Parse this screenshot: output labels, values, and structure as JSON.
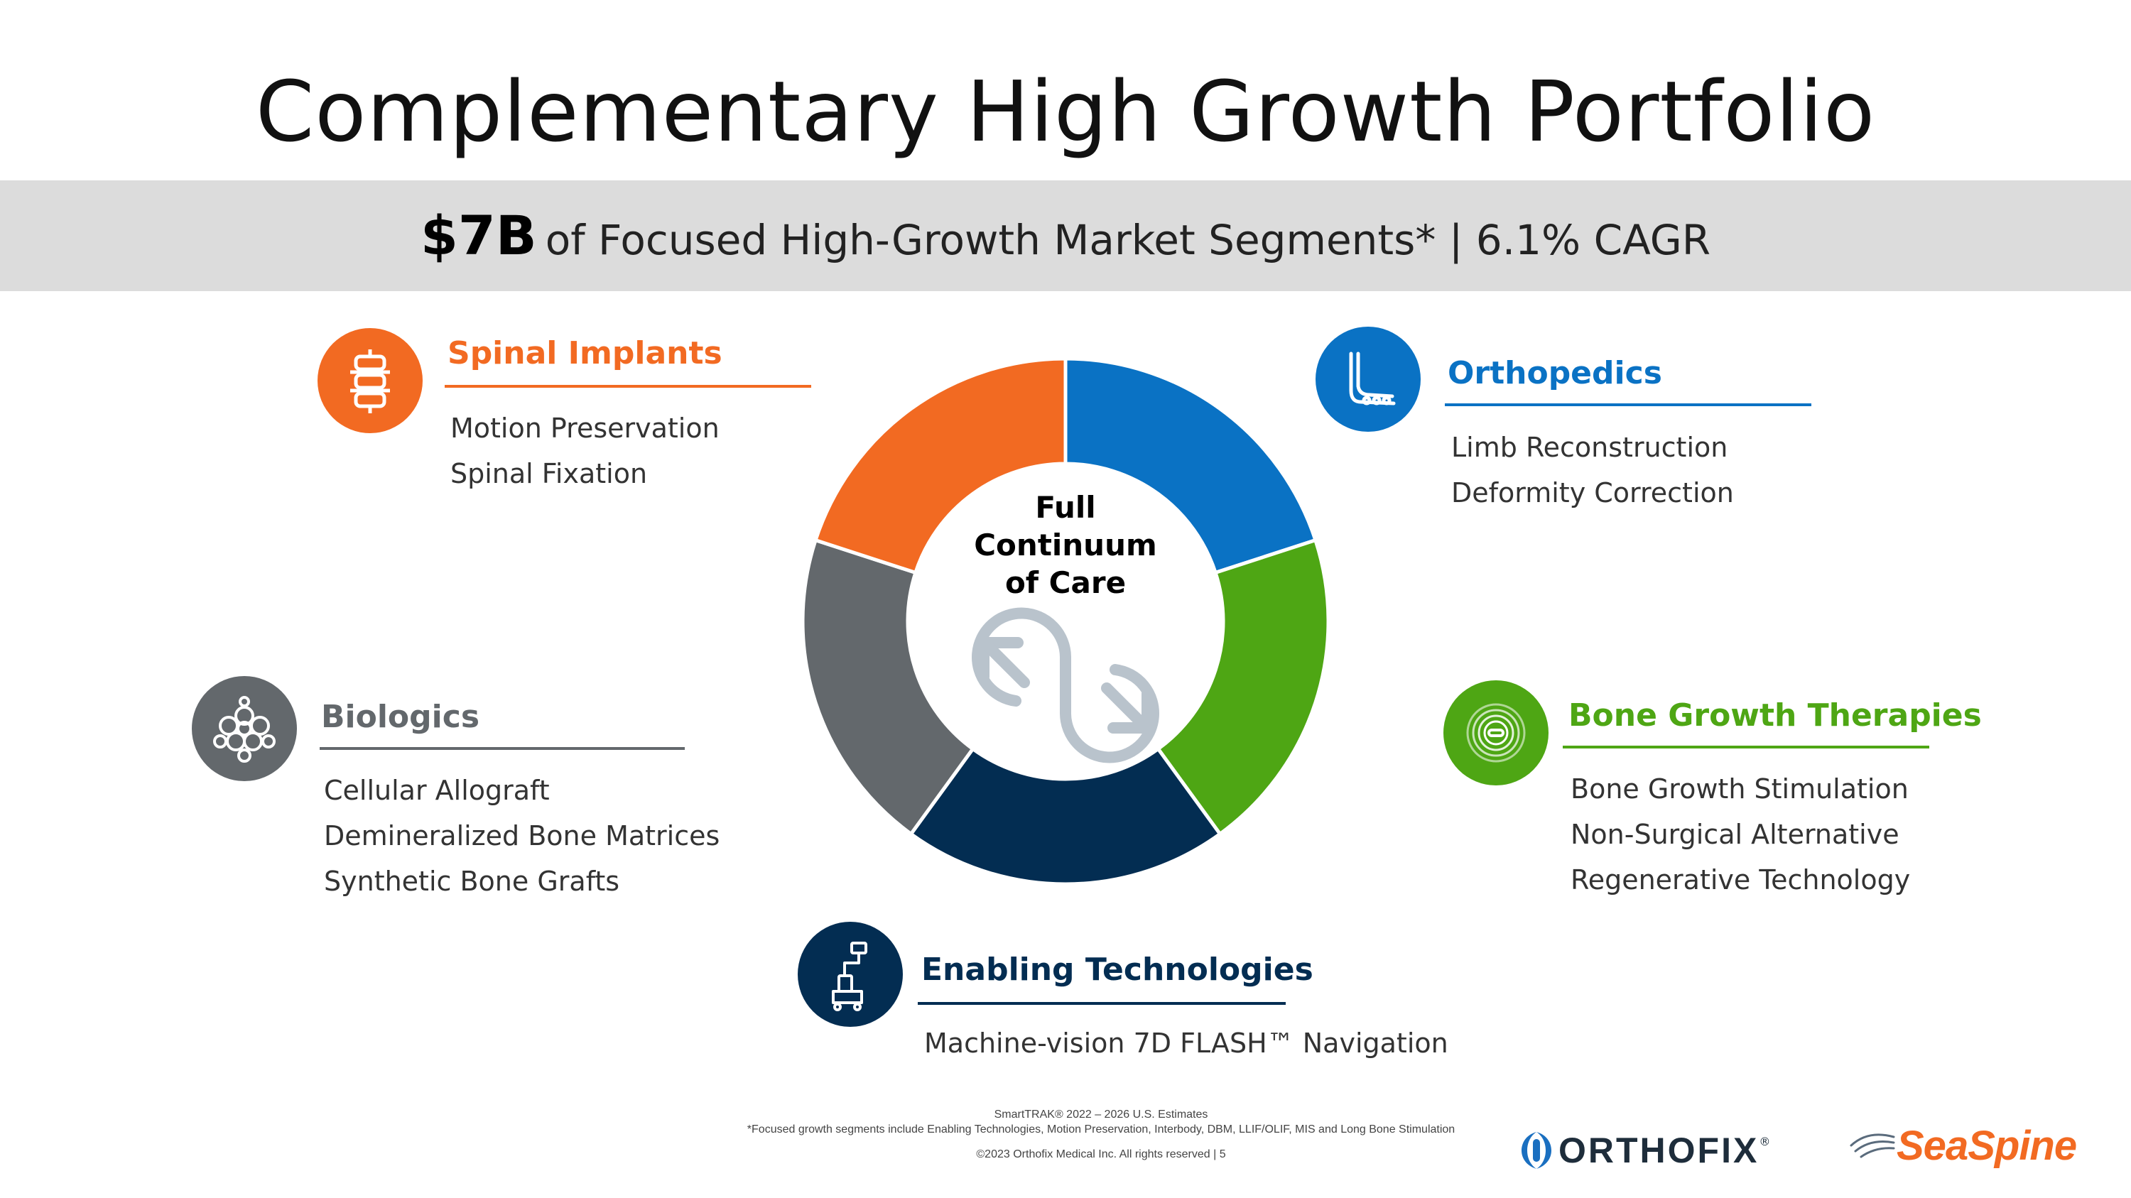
{
  "title": "Complementary High Growth Portfolio",
  "banner": {
    "amount": "$7B",
    "text": "of Focused High-Growth Market Segments* | 6.1% CAGR"
  },
  "colors": {
    "spinal": "#f26a22",
    "ortho": "#0a72c4",
    "bone_growth": "#4ea614",
    "enabling": "#032d52",
    "biologics": "#63686c",
    "center_icon": "#b9c3cc"
  },
  "segments": {
    "spinal": {
      "title": "Spinal Implants",
      "icon": "spine-icon",
      "items": [
        "Motion Preservation",
        "Spinal Fixation"
      ]
    },
    "ortho": {
      "title": "Orthopedics",
      "icon": "foot-bone-icon",
      "items": [
        "Limb Reconstruction",
        "Deformity Correction"
      ]
    },
    "biologics": {
      "title": "Biologics",
      "icon": "cell-matrix-icon",
      "items": [
        "Cellular Allograft",
        "Demineralized Bone Matrices",
        "Synthetic Bone Grafts"
      ]
    },
    "bone_growth": {
      "title": "Bone Growth Therapies",
      "icon": "stimulation-waves-icon",
      "items": [
        "Bone Growth Stimulation",
        "Non-Surgical Alternative",
        "Regenerative Technology"
      ]
    },
    "enabling": {
      "title": "Enabling Technologies",
      "icon": "navigation-cart-icon",
      "items": [
        "Machine-vision 7D FLASH™ Navigation"
      ]
    }
  },
  "center": {
    "line1": "Full",
    "line2": "Continuum",
    "line3": "of Care",
    "icon": "continuum-arrows-icon"
  },
  "chart_data": {
    "type": "pie",
    "title": "Full Continuum of Care",
    "labels": [
      "Orthopedics",
      "Bone Growth Therapies",
      "Enabling Technologies",
      "Biologics",
      "Spinal Implants"
    ],
    "values": [
      20,
      20,
      20,
      20,
      20
    ]
  },
  "footer": {
    "source": "SmartTRAK® 2022 – 2026 U.S. Estimates",
    "note": "*Focused growth segments include Enabling Technologies, Motion Preservation, Interbody, DBM, LLIF/OLIF, MIS and Long Bone Stimulation",
    "copyright": "©2023 Orthofix Medical Inc. All rights reserved  |  5"
  },
  "logos": {
    "orthofix": "ORTHOFIX",
    "orthofix_mark": "®",
    "seaspine": "SeaSpine"
  }
}
